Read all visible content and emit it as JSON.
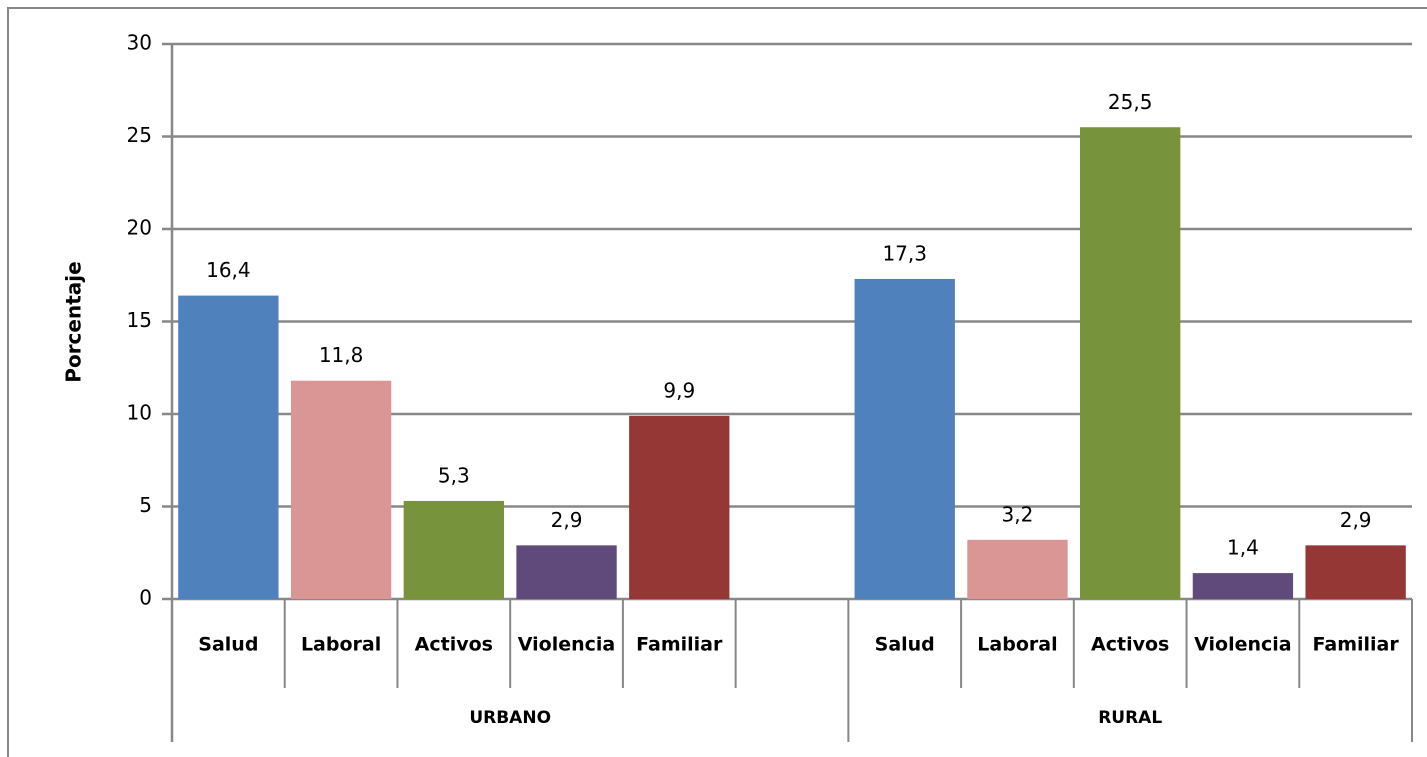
{
  "chart_data": {
    "type": "bar",
    "y_label": "Porcentaje",
    "ylim": [
      0,
      30
    ],
    "yticks": [
      0,
      5,
      10,
      15,
      20,
      25,
      30
    ],
    "grid": true,
    "groups": [
      {
        "label": "URBANO",
        "categories": [
          "Salud",
          "Laboral",
          "Activos",
          "Violencia",
          "Familiar",
          null
        ],
        "values": [
          16.4,
          11.8,
          5.3,
          2.9,
          9.9,
          null
        ],
        "value_labels": [
          "16,4",
          "11,8",
          "5,3",
          "2,9",
          "9,9",
          null
        ],
        "colors": [
          "#4f81bd",
          "#d99694",
          "#77933c",
          "#604a7b",
          "#953735",
          null
        ]
      },
      {
        "label": "RURAL",
        "categories": [
          "Salud",
          "Laboral",
          "Activos",
          "Violencia",
          "Familiar"
        ],
        "values": [
          17.3,
          3.2,
          25.5,
          1.4,
          2.9
        ],
        "value_labels": [
          "17,3",
          "3,2",
          "25,5",
          "1,4",
          "2,9"
        ],
        "colors": [
          "#4f81bd",
          "#d99694",
          "#77933c",
          "#604a7b",
          "#953735"
        ]
      }
    ]
  }
}
